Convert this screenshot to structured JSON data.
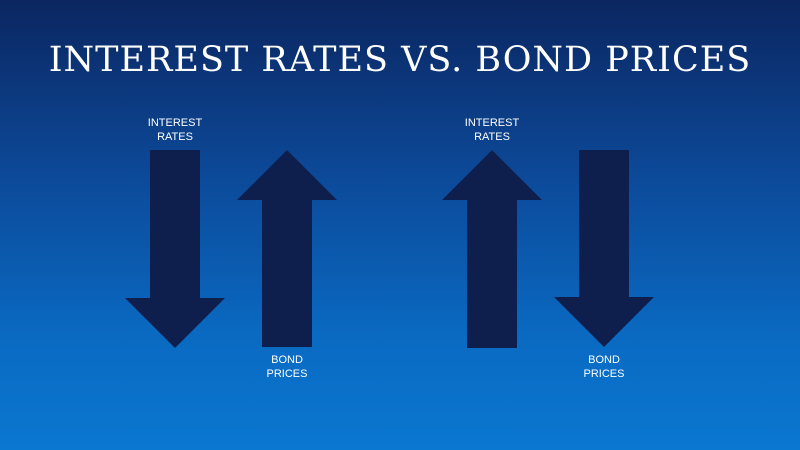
{
  "title": "INTEREST RATES VS. BOND PRICES",
  "scenarios": [
    {
      "interest_rates": {
        "line1": "INTEREST",
        "line2": "RATES",
        "direction": "down"
      },
      "bond_prices": {
        "line1": "BOND",
        "line2": "PRICES",
        "direction": "up"
      }
    },
    {
      "interest_rates": {
        "line1": "INTEREST",
        "line2": "RATES",
        "direction": "up"
      },
      "bond_prices": {
        "line1": "BOND",
        "line2": "PRICES",
        "direction": "down"
      }
    }
  ],
  "colors": {
    "arrow": "#0e1f4d",
    "text": "#ffffff"
  }
}
